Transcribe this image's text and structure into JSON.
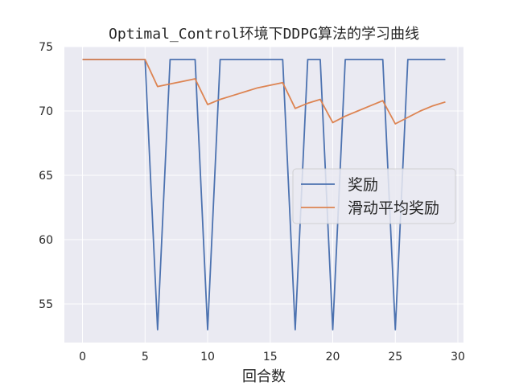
{
  "chart_data": {
    "type": "line",
    "title": "Optimal_Control环境下DDPG算法的学习曲线",
    "xlabel": "回合数",
    "ylabel": "",
    "xlim": [
      -1.45,
      30.45
    ],
    "ylim": [
      52,
      75
    ],
    "xticks": [
      0,
      5,
      10,
      15,
      20,
      25,
      30
    ],
    "yticks": [
      55,
      60,
      65,
      70,
      75
    ],
    "grid": true,
    "legend_position": "center-right",
    "x": [
      0,
      1,
      2,
      3,
      4,
      5,
      6,
      7,
      8,
      9,
      10,
      11,
      12,
      13,
      14,
      15,
      16,
      17,
      18,
      19,
      20,
      21,
      22,
      23,
      24,
      25,
      26,
      27,
      28,
      29
    ],
    "series": [
      {
        "name": "奖励",
        "color": "#4c72b0",
        "values": [
          74,
          74,
          74,
          74,
          74,
          74,
          53,
          74,
          74,
          74,
          53,
          74,
          74,
          74,
          74,
          74,
          74,
          53,
          74,
          74,
          53,
          74,
          74,
          74,
          74,
          53,
          74,
          74,
          74,
          74
        ]
      },
      {
        "name": "滑动平均奖励",
        "color": "#dd8452",
        "values": [
          74,
          74,
          74,
          74,
          74,
          74,
          71.9,
          72.1,
          72.3,
          72.5,
          70.5,
          70.9,
          71.2,
          71.5,
          71.8,
          72.0,
          72.2,
          70.2,
          70.6,
          70.9,
          69.1,
          69.6,
          70.0,
          70.4,
          70.8,
          69.0,
          69.5,
          70.0,
          70.4,
          70.7
        ]
      }
    ]
  }
}
